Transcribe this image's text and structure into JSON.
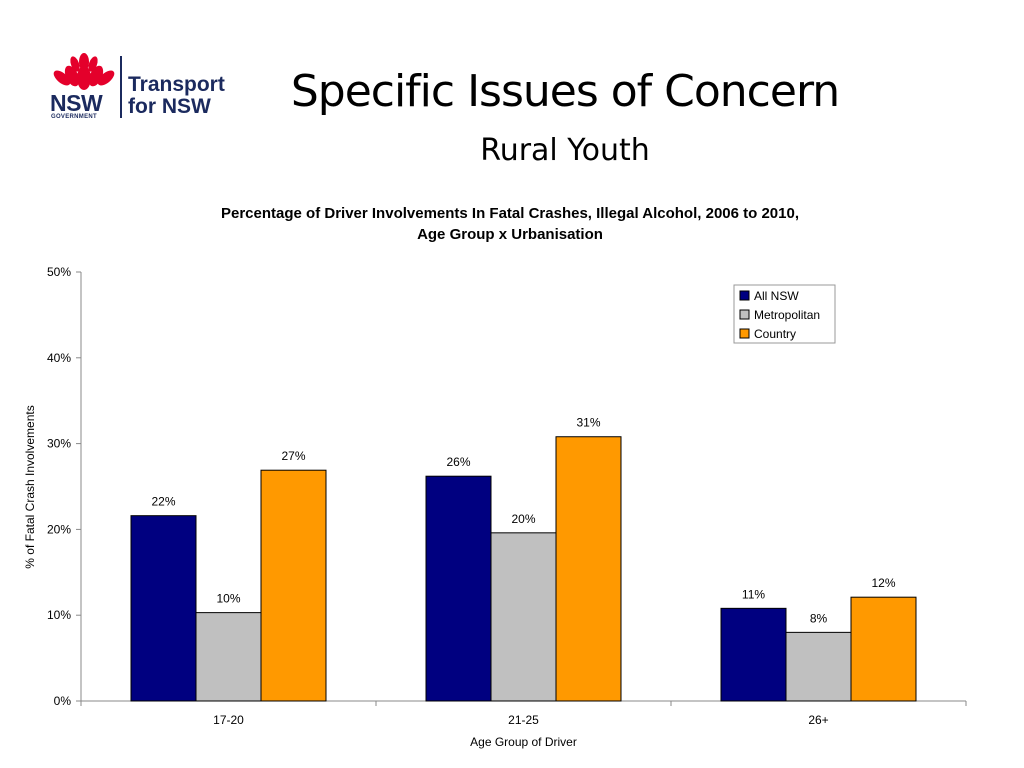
{
  "header": {
    "logo": {
      "text_line1": "Transport",
      "text_line2": "for NSW",
      "nsw": "NSW",
      "gov": "GOVERNMENT"
    },
    "title": "Specific Issues of Concern",
    "subtitle": "Rural Youth"
  },
  "colors": {
    "all_nsw": "#000080",
    "metropolitan": "#c0c0c0",
    "country": "#ff9900",
    "waratah": "#e4002b",
    "logo_navy": "#1b2a5e"
  },
  "chart_data": {
    "type": "bar",
    "title_line1": "Percentage of Driver Involvements In Fatal Crashes, Illegal Alcohol, 2006 to 2010,",
    "title_line2": "Age Group x Urbanisation",
    "xlabel": "Age Group of Driver",
    "ylabel": "% of Fatal Crash Involvements",
    "categories": [
      "17-20",
      "21-25",
      "26+"
    ],
    "ylim": [
      0,
      50
    ],
    "yticks": [
      0,
      10,
      20,
      30,
      40,
      50
    ],
    "ytick_labels": [
      "0%",
      "10%",
      "20%",
      "30%",
      "40%",
      "50%"
    ],
    "grid": false,
    "legend_position": "top-right",
    "series": [
      {
        "name": "All NSW",
        "values": [
          21.6,
          26.2,
          10.8
        ],
        "labels": [
          "22%",
          "26%",
          "11%"
        ],
        "color": "#000080"
      },
      {
        "name": "Metropolitan",
        "values": [
          10.3,
          19.6,
          8.0
        ],
        "labels": [
          "10%",
          "20%",
          "8%"
        ],
        "color": "#c0c0c0"
      },
      {
        "name": "Country",
        "values": [
          26.9,
          30.8,
          12.1
        ],
        "labels": [
          "27%",
          "31%",
          "12%"
        ],
        "color": "#ff9900"
      }
    ]
  }
}
